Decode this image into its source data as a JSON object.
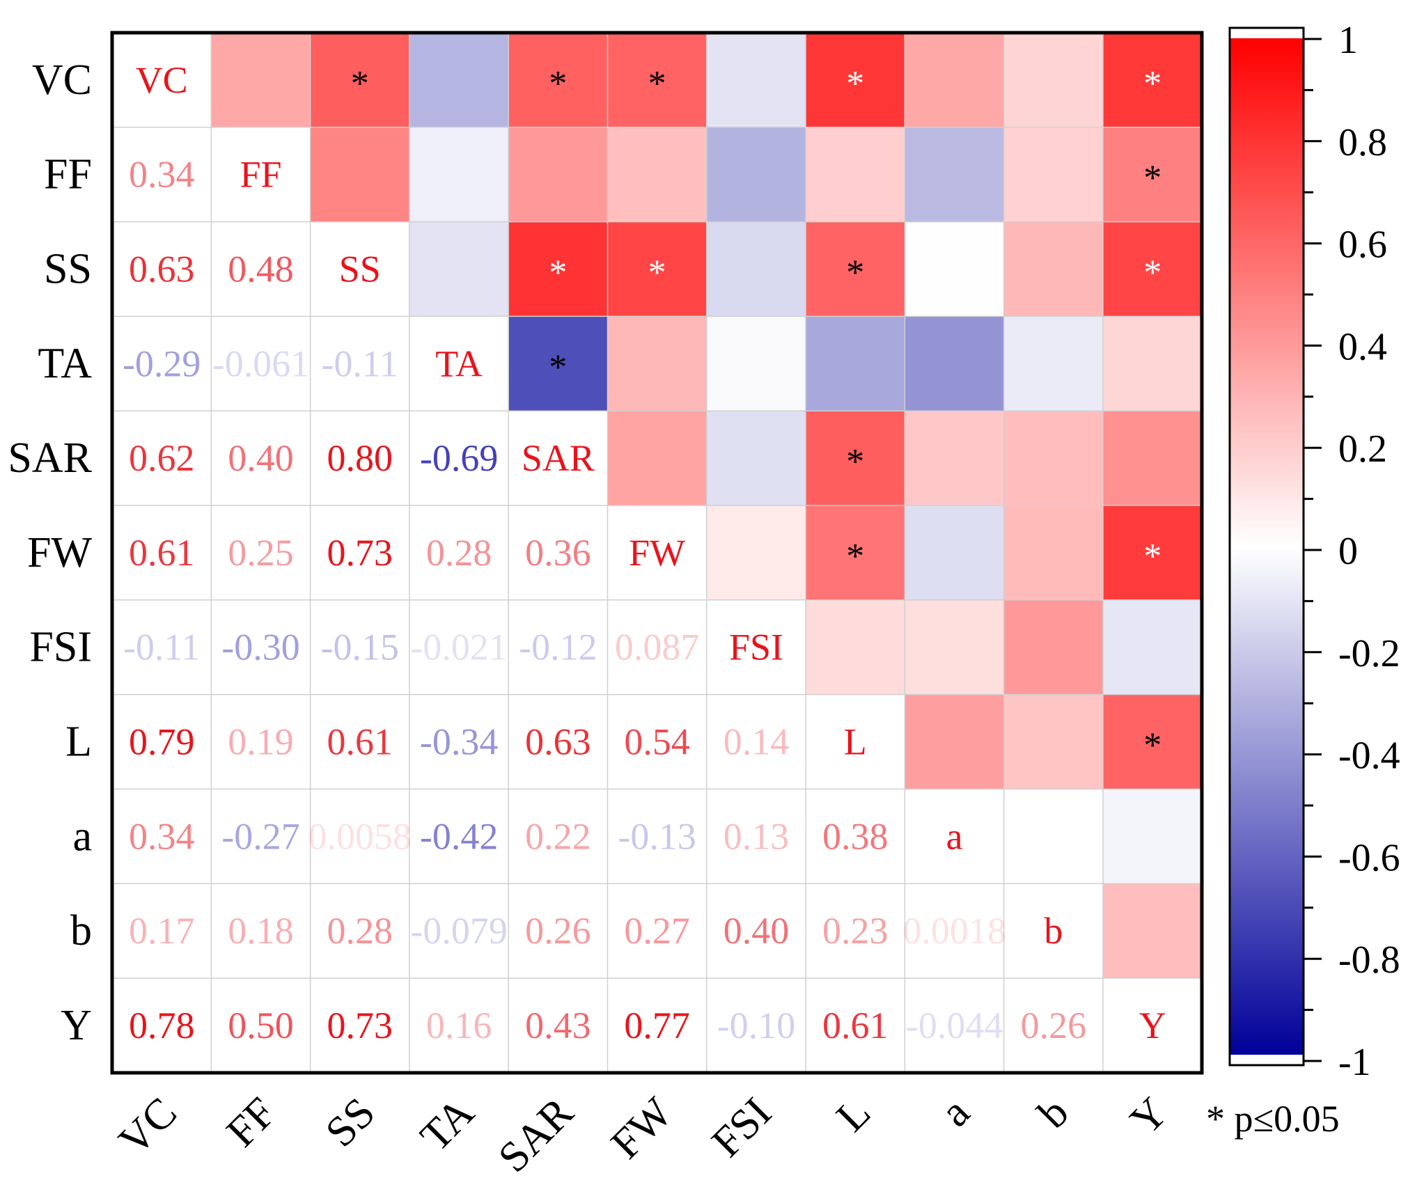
{
  "chart_data": {
    "type": "heatmap",
    "title": "",
    "variables": [
      "VC",
      "FF",
      "SS",
      "TA",
      "SAR",
      "FW",
      "FSI",
      "L",
      "a",
      "b",
      "Y"
    ],
    "lower_triangle_labels": [
      [],
      [
        "0.34"
      ],
      [
        "0.63",
        "0.48"
      ],
      [
        "-0.29",
        "-0.061",
        "-0.11"
      ],
      [
        "0.62",
        "0.40",
        "0.80",
        "-0.69"
      ],
      [
        "0.61",
        "0.25",
        "0.73",
        "0.28",
        "0.36"
      ],
      [
        "-0.11",
        "-0.30",
        "-0.15",
        "-0.021",
        "-0.12",
        "0.087"
      ],
      [
        "0.79",
        "0.19",
        "0.61",
        "-0.34",
        "0.63",
        "0.54",
        "0.14"
      ],
      [
        "0.34",
        "-0.27",
        "0.0058",
        "-0.42",
        "0.22",
        "-0.13",
        "0.13",
        "0.38"
      ],
      [
        "0.17",
        "0.18",
        "0.28",
        "-0.079",
        "0.26",
        "0.27",
        "0.40",
        "0.23",
        "0.0018"
      ],
      [
        "0.78",
        "0.50",
        "0.73",
        "0.16",
        "0.43",
        "0.77",
        "-0.10",
        "0.61",
        "-0.044",
        "0.26"
      ]
    ],
    "significance_rule": "|r| >= 0.5",
    "significance_marker": "*",
    "significance_note": "* p≤0.05",
    "colorbar": {
      "range": [
        -1,
        1
      ],
      "ticks": [
        "1",
        "0.8",
        "0.6",
        "0.4",
        "0.2",
        "0",
        "-0.2",
        "-0.4",
        "-0.6",
        "-0.8",
        "-1"
      ],
      "colors": {
        "positive": "#ff0000",
        "zero": "#ffffff",
        "negative": "#000099"
      }
    },
    "text_colors": {
      "positive": "#e8141c",
      "negative": "#3a36b8",
      "diagonal": "#e8141c"
    }
  }
}
